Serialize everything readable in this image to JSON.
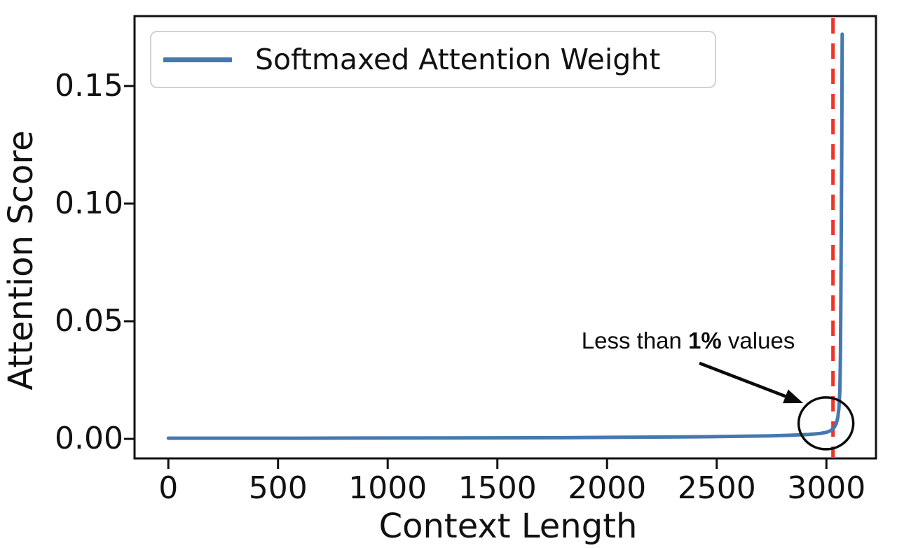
{
  "figure": {
    "legend": {
      "label": "Softmaxed Attention Weight",
      "line_color": "#4678b0"
    },
    "annotation": {
      "prefix": "Less than ",
      "bold": "1%",
      "suffix": " values"
    }
  },
  "chart_data": {
    "type": "line",
    "title": "",
    "xlabel": "Context Length",
    "ylabel": "Attention Score",
    "xlim": [
      -154,
      3226
    ],
    "ylim": [
      -0.0083,
      0.1797
    ],
    "x_ticks": [
      0,
      500,
      1000,
      1500,
      2000,
      2500,
      3000
    ],
    "y_ticks": [
      0,
      0.05,
      0.1,
      0.15
    ],
    "y_tick_labels": [
      "0.00",
      "0.05",
      "0.10",
      "0.15"
    ],
    "grid": false,
    "legend_position": "upper left",
    "axis_color": "#111111",
    "series": [
      {
        "name": "Softmaxed Attention Weight",
        "color": "#4678b0",
        "points": [
          [
            0,
            0.0003
          ],
          [
            300,
            0.0003
          ],
          [
            600,
            0.0003
          ],
          [
            900,
            0.00035
          ],
          [
            1200,
            0.0004
          ],
          [
            1500,
            0.00045
          ],
          [
            1800,
            0.0005
          ],
          [
            2100,
            0.0007
          ],
          [
            2400,
            0.0009
          ],
          [
            2600,
            0.0011
          ],
          [
            2750,
            0.0013
          ],
          [
            2850,
            0.0016
          ],
          [
            2920,
            0.0019
          ],
          [
            2970,
            0.0023
          ],
          [
            3000,
            0.0028
          ],
          [
            3020,
            0.0035
          ],
          [
            3035,
            0.0048
          ],
          [
            3045,
            0.0065
          ],
          [
            3052,
            0.009
          ],
          [
            3057,
            0.013
          ],
          [
            3061,
            0.02
          ],
          [
            3064,
            0.035
          ],
          [
            3066,
            0.06
          ],
          [
            3068,
            0.09
          ],
          [
            3070,
            0.125
          ],
          [
            3071,
            0.15
          ],
          [
            3072,
            0.172
          ]
        ]
      }
    ],
    "vline": {
      "x": 3030,
      "color": "#ee3427",
      "style": "dashed",
      "width": 5
    },
    "annotations": {
      "text": "Less than 1% values",
      "text_center": [
        2370,
        0.0417
      ],
      "arrow_from": [
        2421,
        0.0322
      ],
      "arrow_to": [
        2894,
        0.0152
      ],
      "circle_center": [
        2998,
        0.0066
      ],
      "circle_radius_px": [
        39,
        37
      ],
      "color": "#0b0b0b"
    }
  }
}
